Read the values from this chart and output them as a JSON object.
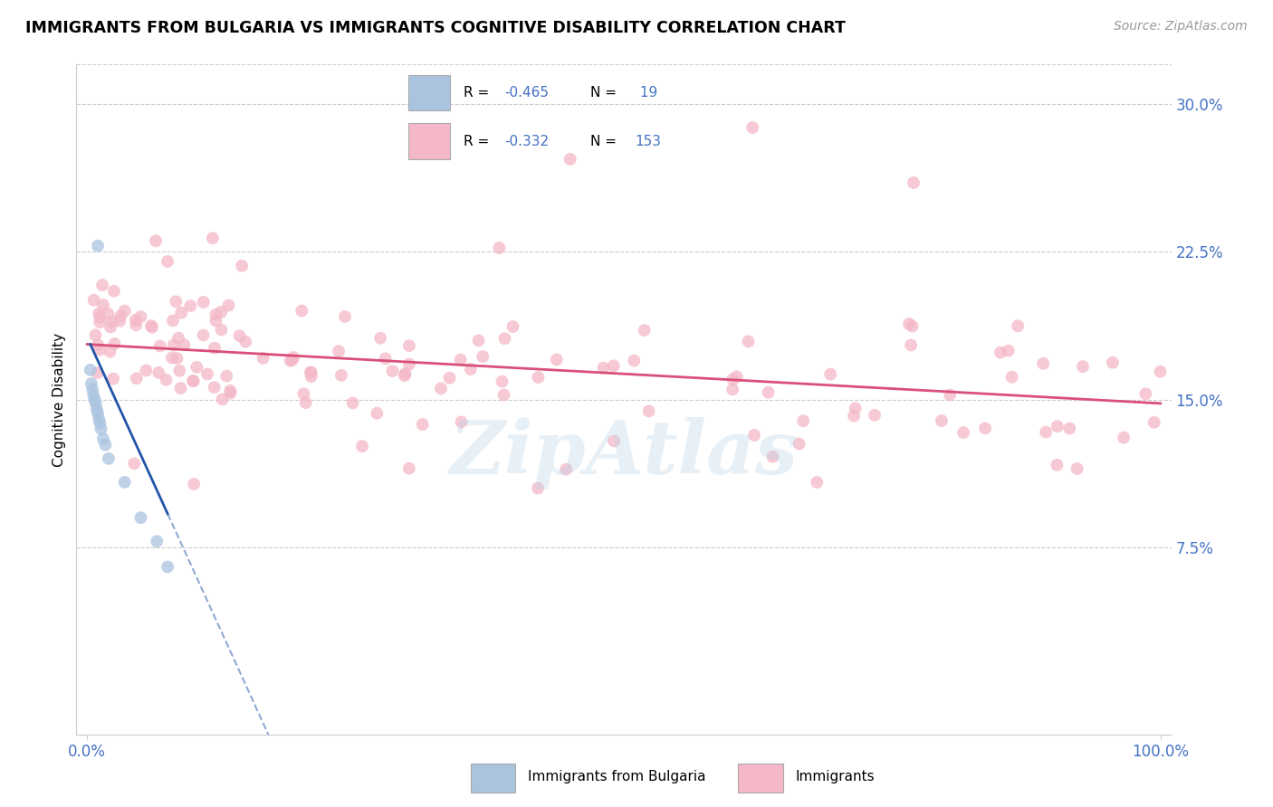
{
  "title": "IMMIGRANTS FROM BULGARIA VS IMMIGRANTS COGNITIVE DISABILITY CORRELATION CHART",
  "source": "Source: ZipAtlas.com",
  "ylabel": "Cognitive Disability",
  "ymin": 0.0,
  "ymax": 0.32,
  "yticks": [
    0.075,
    0.15,
    0.225,
    0.3
  ],
  "ytick_labels": [
    "7.5%",
    "15.0%",
    "22.5%",
    "30.0%"
  ],
  "blue_color": "#aac4e0",
  "pink_color": "#f4b8c8",
  "blue_line_color": "#2255aa",
  "pink_line_color": "#d94f7a",
  "background_color": "#ffffff",
  "watermark": "ZipAtlas",
  "tick_color": "#4472c4",
  "grid_color": "#cccccc",
  "blue_r": "-0.465",
  "blue_n": "19",
  "pink_r": "-0.332",
  "pink_n": "153"
}
